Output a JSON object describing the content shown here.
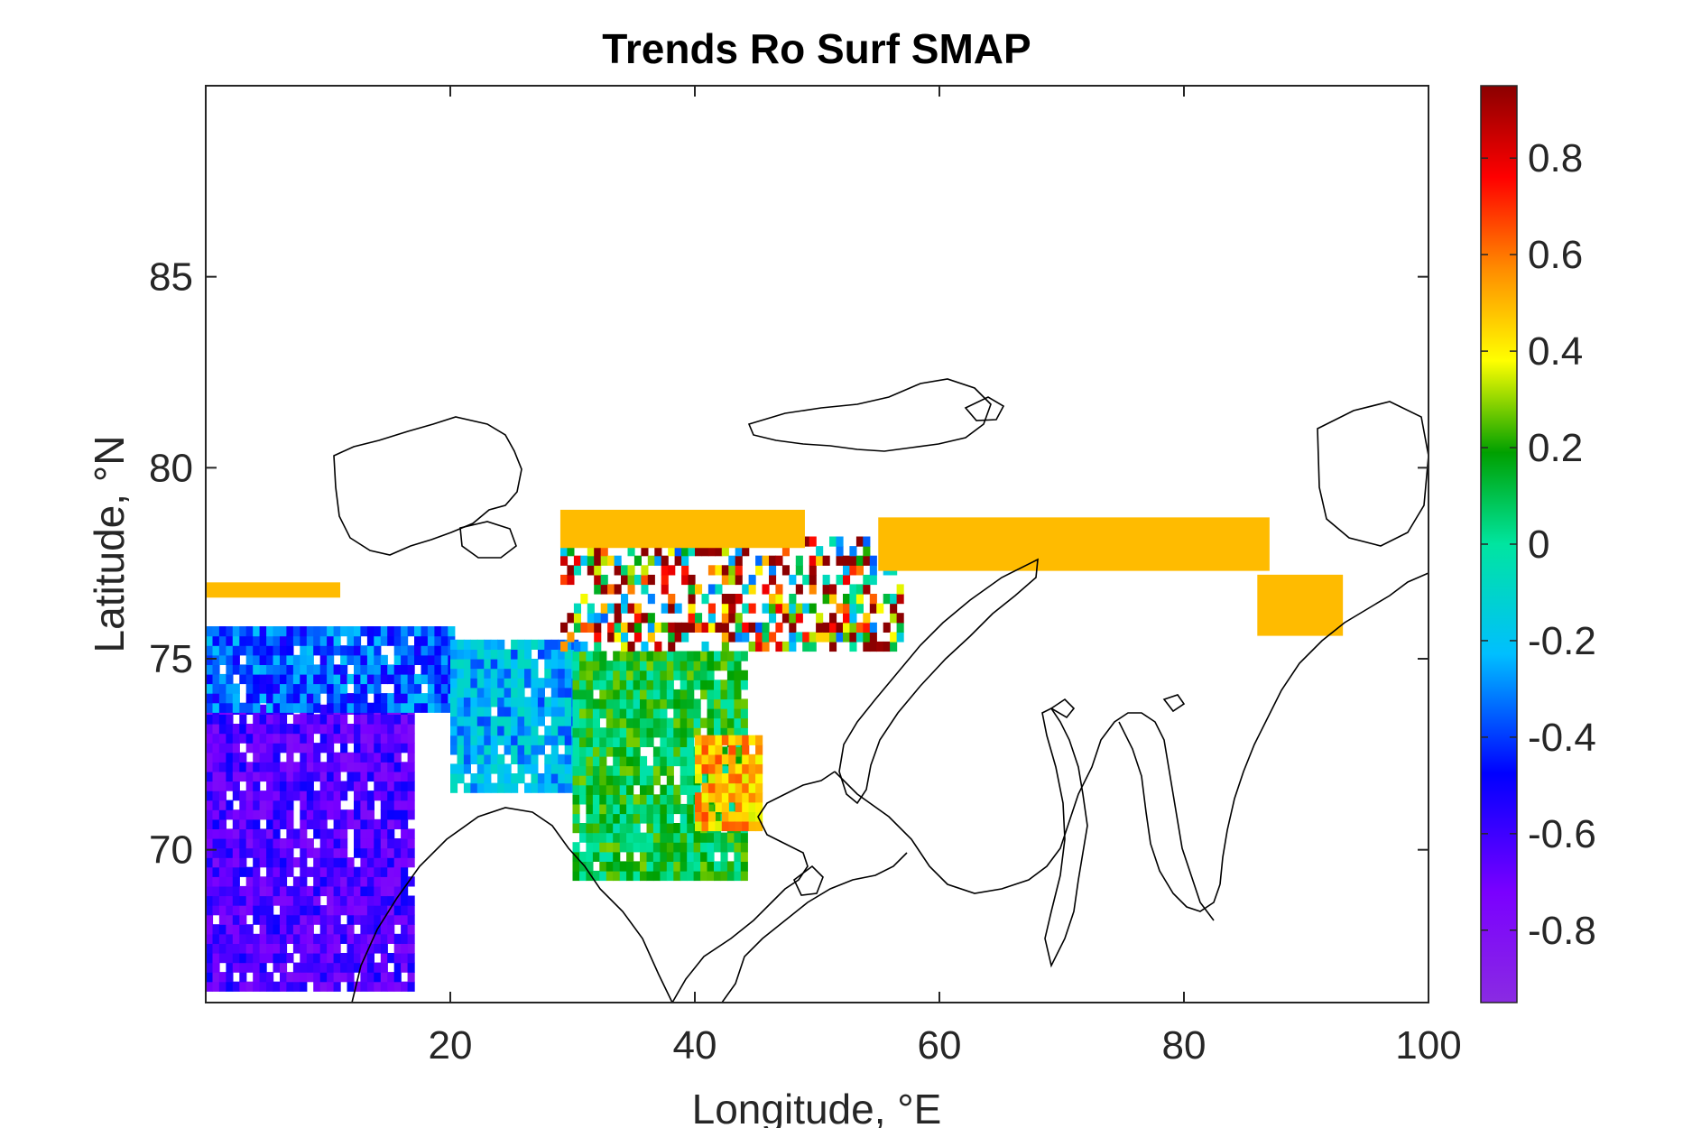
{
  "chart_data": {
    "type": "heatmap",
    "title": "Trends Ro Surf SMAP",
    "xlabel": "Longitude, °E",
    "ylabel": "Latitude, °N",
    "xlim": [
      0,
      100
    ],
    "ylim": [
      66,
      90
    ],
    "x_ticks": [
      20,
      40,
      60,
      80,
      100
    ],
    "y_ticks": [
      70,
      75,
      80,
      85
    ],
    "x_tick_labels": [
      "20",
      "40",
      "60",
      "80",
      "100"
    ],
    "y_tick_labels": [
      "70",
      "75",
      "80",
      "85"
    ],
    "colorbar": {
      "range": [
        -0.95,
        0.95
      ],
      "ticks": [
        -0.8,
        -0.6,
        -0.4,
        -0.2,
        0,
        0.2,
        0.4,
        0.6,
        0.8
      ],
      "tick_labels": [
        "-0.8",
        "-0.6",
        "-0.4",
        "-0.2",
        "0",
        "0.2",
        "0.4",
        "0.6",
        "0.8"
      ],
      "colormap": "jet-like (purple → blue → cyan → green → yellow → orange → red → dark red)",
      "colors": [
        "#8a2be2",
        "#0000ff",
        "#00bfff",
        "#00e5a0",
        "#00a000",
        "#ffff00",
        "#ff8c00",
        "#ff0000",
        "#8b0000"
      ]
    },
    "regions": [
      {
        "name": "western block",
        "lon": [
          0,
          17
        ],
        "lat": [
          66.3,
          73.6
        ],
        "value": -0.62
      },
      {
        "name": "western shelf",
        "lon": [
          0,
          20
        ],
        "lat": [
          73.6,
          75.8
        ],
        "value": -0.35
      },
      {
        "name": "central shelf",
        "lon": [
          20,
          30
        ],
        "lat": [
          71.5,
          75.5
        ],
        "value": -0.22
      },
      {
        "name": "eastern shelf",
        "lon": [
          30,
          44
        ],
        "lat": [
          69.2,
          75.2
        ],
        "value": 0.12
      },
      {
        "name": "coastal edge",
        "lon": [
          40,
          45
        ],
        "lat": [
          70.5,
          73.0
        ],
        "value": 0.5
      },
      {
        "name": "northern scatter",
        "lon": [
          29,
          57
        ],
        "lat": [
          75.2,
          78.2
        ],
        "value": 0.45
      }
    ],
    "ice_edge_band": [
      {
        "lon": [
          0,
          11
        ],
        "lat": [
          76.6,
          77.0
        ],
        "value": 0.48
      },
      {
        "lon": [
          29,
          49
        ],
        "lat": [
          77.9,
          78.9
        ],
        "value": 0.48
      },
      {
        "lon": [
          55,
          87
        ],
        "lat": [
          77.3,
          78.7
        ],
        "value": 0.48
      },
      {
        "lon": [
          86,
          93
        ],
        "lat": [
          75.6,
          77.2
        ],
        "value": 0.48
      }
    ],
    "grid": false,
    "map_overlay": "coastline outlines in black"
  }
}
